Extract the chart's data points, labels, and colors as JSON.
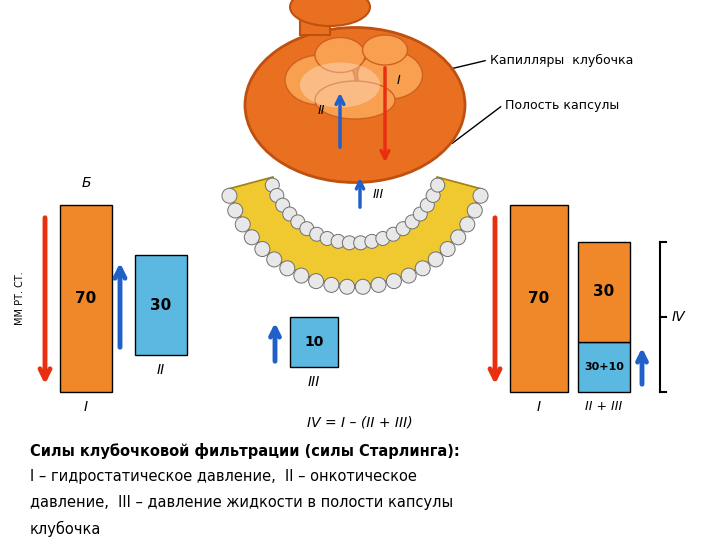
{
  "bg_color": "#ffffff",
  "fig_width": 7.2,
  "fig_height": 5.4,
  "title_line1": "Силы клубочковой фильтрации (силы Старлинга):",
  "title_line2": "I – гидростатическое давление,  II – онкотическое",
  "title_line3": "давление,  III – давление жидкости в полости капсулы",
  "title_line4": "клубочка",
  "ylabel": "ММ РТ. СТ.",
  "orange_color": "#F0882A",
  "cyan_color": "#5BB8E0",
  "red_arrow_color": "#E83010",
  "blue_arrow_color": "#2060C8",
  "yellow_color": "#F0C830",
  "capsule_border": "#8B7020",
  "bead_color": "#D8D8D8",
  "bead_edge": "#909090",
  "formula_text": "IV = I – (II + III)"
}
